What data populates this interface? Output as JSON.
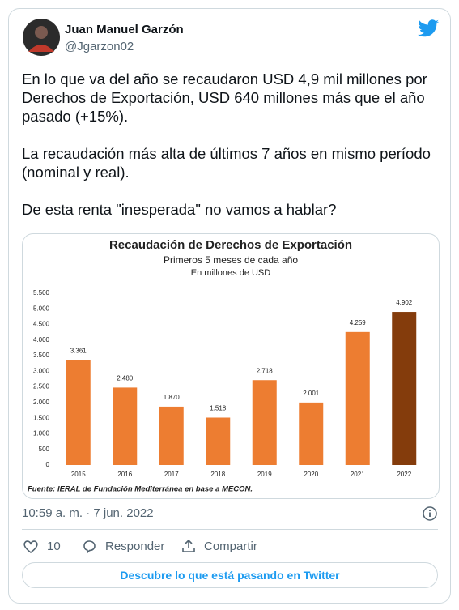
{
  "author": {
    "name": "Juan Manuel Garzón",
    "handle": "@Jgarzon02"
  },
  "tweet": {
    "paragraphs": [
      "En lo que va del año se recaudaron USD 4,9 mil millones por Derechos de Exportación, USD 640 millones más que el año pasado (+15%).",
      "La recaudación más alta de últimos 7 años en mismo período (nominal y real).",
      "De esta renta \"inesperada\" no vamos a hablar?"
    ]
  },
  "chart_data": {
    "type": "bar",
    "title": "Recaudación de Derechos de Exportación",
    "subtitle": "Primeros 5 meses de cada año",
    "unit_note": "En millones de USD",
    "categories": [
      "2015",
      "2016",
      "2017",
      "2018",
      "2019",
      "2020",
      "2021",
      "2022"
    ],
    "values": [
      3361,
      2480,
      1870,
      1518,
      2718,
      2001,
      4259,
      4902
    ],
    "value_labels": [
      "3.361",
      "2.480",
      "1.870",
      "1.518",
      "2.718",
      "2.001",
      "4.259",
      "4.902"
    ],
    "colors": [
      "#ed7d31",
      "#ed7d31",
      "#ed7d31",
      "#ed7d31",
      "#ed7d31",
      "#ed7d31",
      "#ed7d31",
      "#843c0c"
    ],
    "ylim": [
      0,
      5500
    ],
    "yticks": [
      0,
      500,
      {
        "value": 1000,
        "label": "1.000"
      },
      {
        "value": 1500,
        "label": "1.500"
      },
      {
        "value": 2000,
        "label": "2.000"
      },
      {
        "value": 2500,
        "label": "2.500"
      },
      {
        "value": 3000,
        "label": "3.000"
      },
      {
        "value": 3500,
        "label": "3.500"
      },
      {
        "value": 4000,
        "label": "4.000"
      },
      {
        "value": 4500,
        "label": "4.500"
      },
      {
        "value": 5000,
        "label": "5.000"
      },
      {
        "value": 5500,
        "label": "5.500"
      }
    ],
    "grid": false,
    "source": "Fuente: IERAL de Fundación Mediterránea en base a MECON."
  },
  "timestamp": "10:59 a. m. · 7 jun. 2022",
  "actions": {
    "likes": 10,
    "reply": "Responder",
    "share": "Compartir"
  },
  "cta": "Descubre lo que está pasando en Twitter"
}
